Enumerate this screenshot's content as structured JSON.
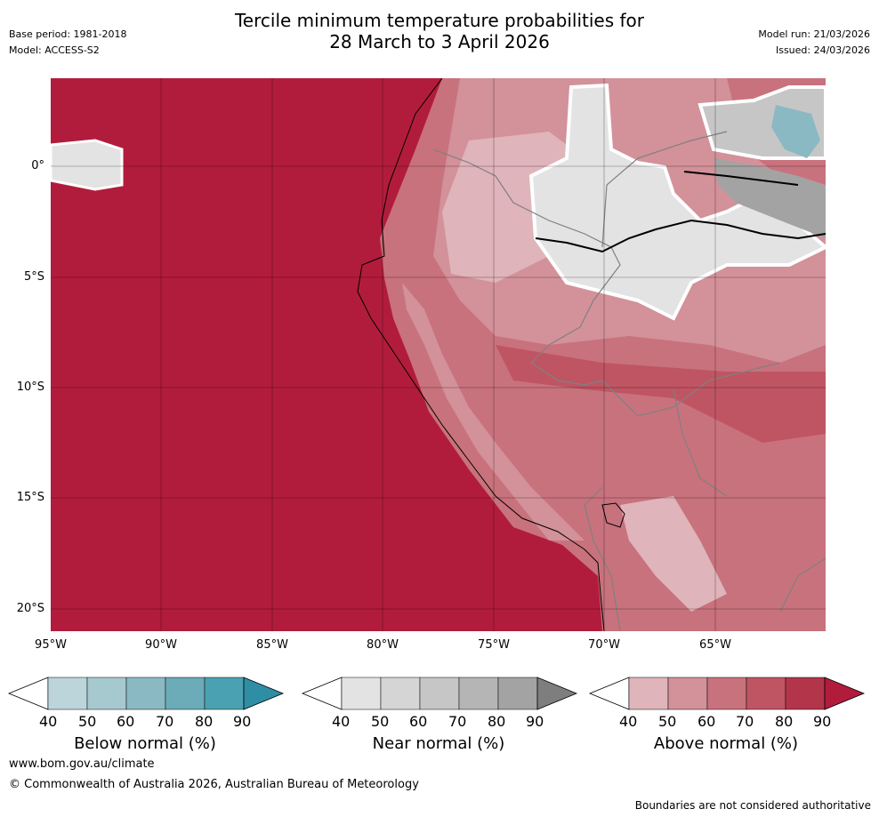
{
  "header": {
    "base_period": "Base period: 1981-2018",
    "model": "Model: ACCESS-S2",
    "title_line1": "Tercile minimum temperature probabilities for",
    "title_line2": "28 March to 3 April 2026",
    "model_run": "Model run: 21/03/2026",
    "issued": "Issued: 24/03/2026"
  },
  "map": {
    "lat_labels": [
      "0°",
      "5°S",
      "10°S",
      "15°S",
      "20°S"
    ],
    "lon_labels": [
      "95°W",
      "90°W",
      "85°W",
      "80°W",
      "75°W",
      "70°W",
      "65°W"
    ]
  },
  "colorbars": [
    {
      "title": "Below normal (%)",
      "ticks": [
        "40",
        "50",
        "60",
        "70",
        "80",
        "90"
      ],
      "colors": [
        "#ffffff",
        "#bcd5da",
        "#a6c9cf",
        "#8ab9c3",
        "#6cabb8",
        "#4aa1b1",
        "#2e8ea4"
      ]
    },
    {
      "title": "Near normal (%)",
      "ticks": [
        "40",
        "50",
        "60",
        "70",
        "80",
        "90"
      ],
      "colors": [
        "#ffffff",
        "#e3e3e3",
        "#d5d5d5",
        "#c6c6c6",
        "#b5b5b5",
        "#a3a3a3",
        "#7e7e7e"
      ]
    },
    {
      "title": "Above normal (%)",
      "ticks": [
        "40",
        "50",
        "60",
        "70",
        "80",
        "90"
      ],
      "colors": [
        "#ffffff",
        "#dfb4ba",
        "#d3919a",
        "#c8727d",
        "#bf5563",
        "#b2354a",
        "#b21c3c"
      ]
    }
  ],
  "footer": {
    "website": "www.bom.gov.au/climate",
    "copyright": "© Commonwealth of Australia 2026, Australian Bureau of Meteorology",
    "disclaimer": "Boundaries are not considered authoritative"
  }
}
